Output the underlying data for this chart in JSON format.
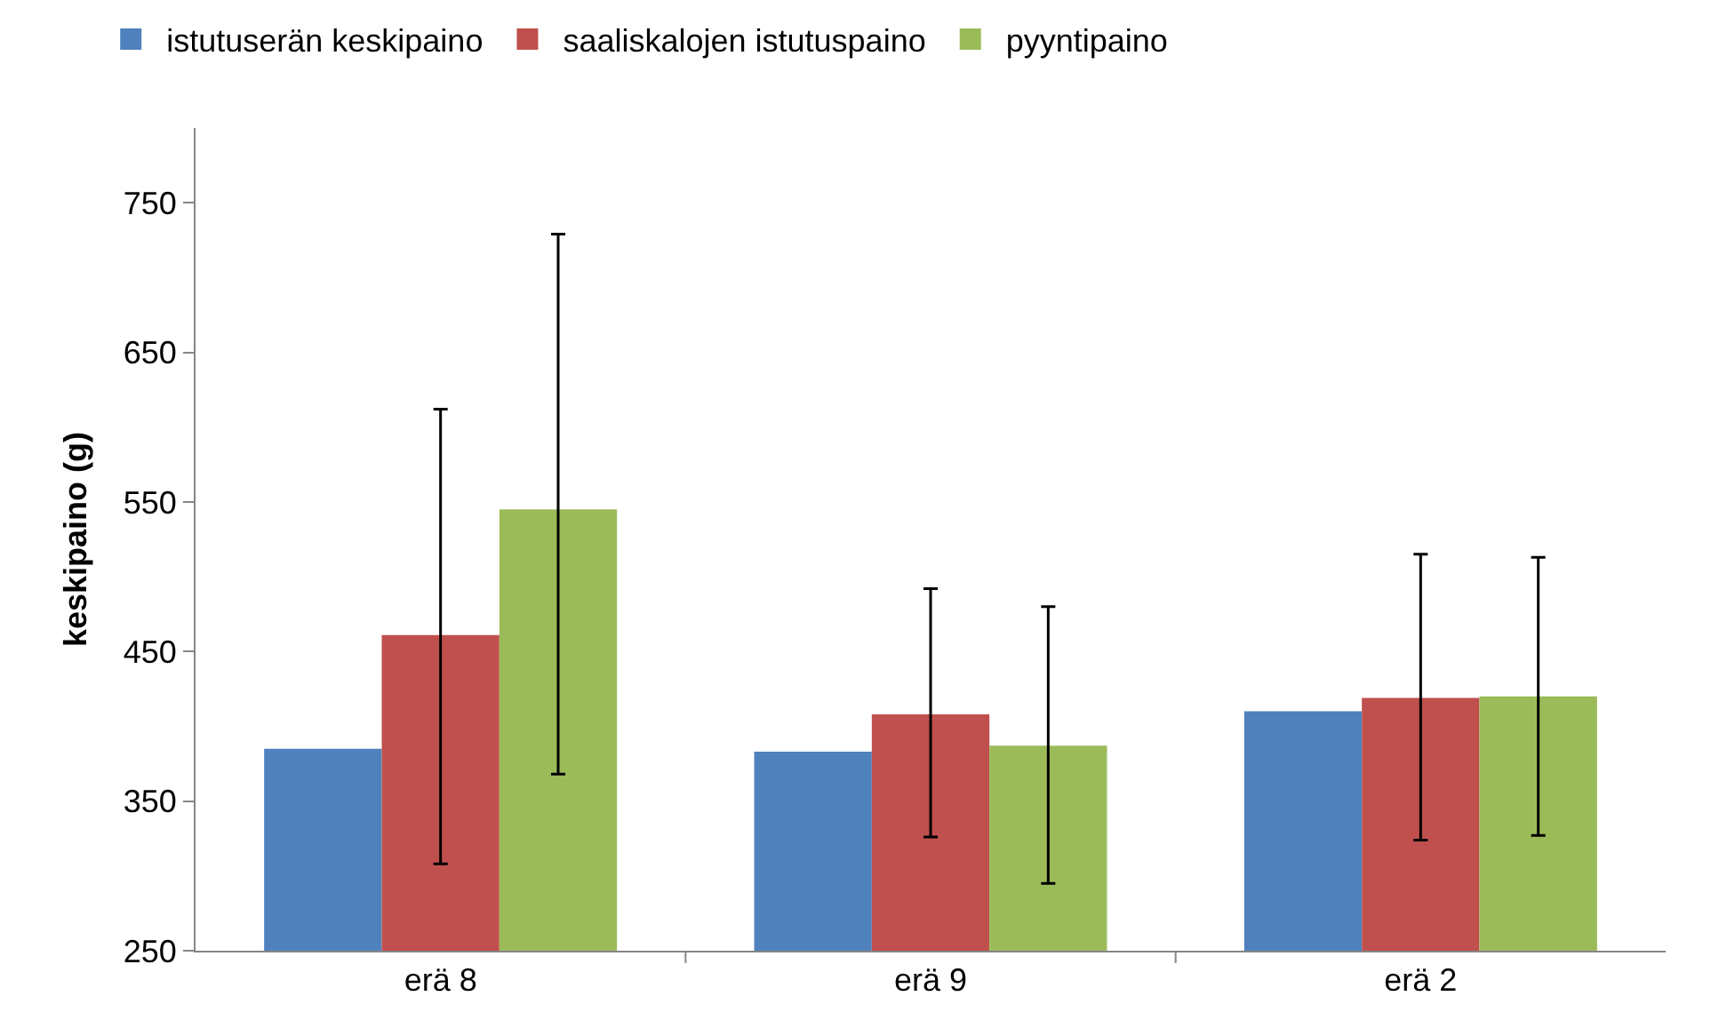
{
  "chart_data": {
    "type": "bar",
    "ylabel": "keskipaino (g)",
    "categories": [
      "erä 8",
      "erä 9",
      "erä 2"
    ],
    "ylim": [
      250,
      800
    ],
    "yticks": [
      250,
      350,
      450,
      550,
      650,
      750
    ],
    "grid": false,
    "legend": "top",
    "series": [
      {
        "name": "istutuserän keskipaino",
        "color": "#4f81bd",
        "values": [
          385,
          383,
          410
        ]
      },
      {
        "name": "saaliskalojen istutuspaino",
        "color": "#c0504d",
        "values": [
          461,
          408,
          419
        ],
        "errors": [
          [
            308,
            612
          ],
          [
            326,
            492
          ],
          [
            324,
            515
          ]
        ]
      },
      {
        "name": "pyyntipaino",
        "color": "#9bbb59",
        "values": [
          545,
          387,
          420
        ],
        "errors": [
          [
            368,
            729
          ],
          [
            295,
            480
          ],
          [
            327,
            513
          ]
        ]
      }
    ]
  }
}
